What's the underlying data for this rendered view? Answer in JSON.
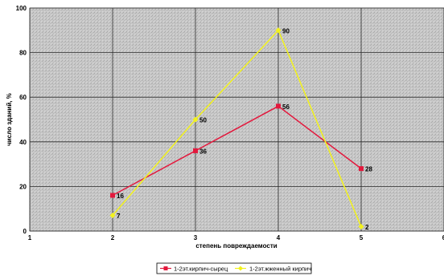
{
  "chart_data": {
    "type": "line",
    "x": [
      2,
      3,
      4,
      5
    ],
    "xlim": [
      1,
      6
    ],
    "ylim": [
      0,
      100
    ],
    "x_ticks": [
      1,
      2,
      3,
      4,
      5,
      6
    ],
    "y_ticks": [
      0,
      20,
      40,
      60,
      80,
      100
    ],
    "xlabel": "степень повреждаемости",
    "ylabel": "число зданий, %",
    "grid": true,
    "legend_position": "bottom",
    "series": [
      {
        "name": "1-2эт.кирпич-сырец",
        "values": [
          16,
          36,
          56,
          28
        ],
        "labels": [
          "16",
          "36",
          "56",
          "28"
        ],
        "color": "#e3193d",
        "marker": "square"
      },
      {
        "name": "1-2эт.жженный кирпич",
        "values": [
          7,
          50,
          90,
          2
        ],
        "labels": [
          "7",
          "50",
          "90",
          "2"
        ],
        "color": "#f2f21c",
        "marker": "diamond"
      }
    ]
  }
}
